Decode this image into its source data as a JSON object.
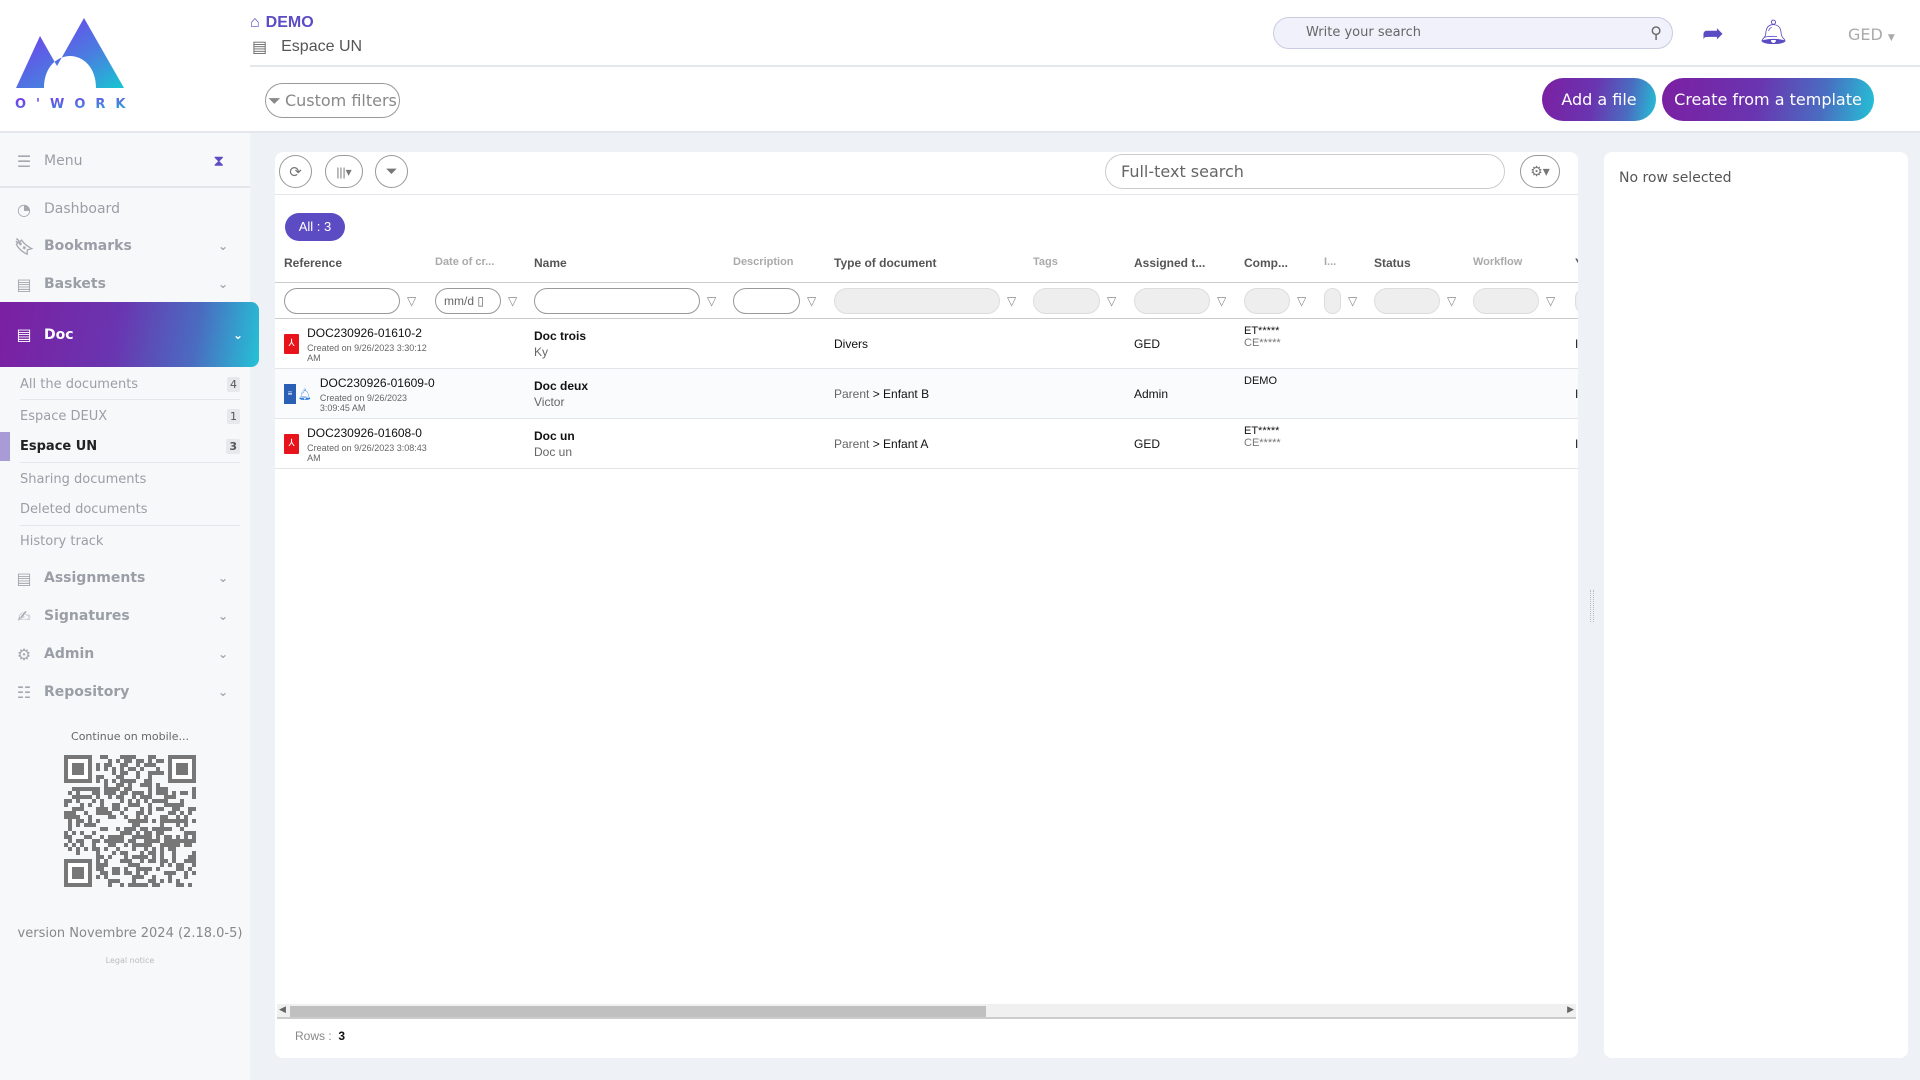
{
  "logo": {
    "text": "O'WORK"
  },
  "header": {
    "org": "DEMO",
    "space": "Espace UN",
    "search_placeholder": "Write your search",
    "user_menu": "GED",
    "custom_filters": "Custom filters",
    "add_file": "Add a file",
    "create_template": "Create from a template"
  },
  "sidebar": {
    "menu": "Menu",
    "items": [
      {
        "label": "Dashboard"
      },
      {
        "label": "Bookmarks"
      },
      {
        "label": "Baskets"
      },
      {
        "label": "Doc"
      },
      {
        "label": "Assignments"
      },
      {
        "label": "Signatures"
      },
      {
        "label": "Admin"
      },
      {
        "label": "Repository"
      }
    ],
    "doc_sub": [
      {
        "label": "All the documents",
        "count": "4"
      },
      {
        "label": "Espace DEUX",
        "count": "1"
      },
      {
        "label": "Espace UN",
        "count": "3"
      },
      {
        "label": "Sharing documents"
      },
      {
        "label": "Deleted documents"
      },
      {
        "label": "History track"
      }
    ],
    "mobile": "Continue on mobile...",
    "version": "version Novembre 2024 (2.18.0-5)",
    "legal": "Legal notice"
  },
  "table": {
    "fulltext_placeholder": "Full-text search",
    "all_badge": "All : 3",
    "columns": [
      "Reference",
      "Date of cr...",
      "Name",
      "Description",
      "Type of document",
      "Tags",
      "Assigned t...",
      "Comp...",
      "I...",
      "Status",
      "Workflow",
      "Y"
    ],
    "date_placeholder": "mm/d",
    "rows": [
      {
        "ref": "DOC230926-01610-2",
        "created": "Created on 9/26/2023 3:30:12 AM",
        "name": "Doc trois",
        "desc": "Ky",
        "type_parent": "",
        "type": "Divers",
        "assigned": "GED",
        "comp1": "ET*****",
        "comp2": "CE*****",
        "icon": "pdf-icon"
      },
      {
        "ref": "DOC230926-01609-0",
        "created": "Created on 9/26/2023 3:09:45 AM",
        "name": "Doc deux",
        "desc": "Victor",
        "type_parent": "Parent",
        "type": "> Enfant B",
        "assigned": "Admin",
        "comp1": "DEMO",
        "comp2": "",
        "icon": "word-doc-icon"
      },
      {
        "ref": "DOC230926-01608-0",
        "created": "Created on 9/26/2023 3:08:43 AM",
        "name": "Doc un",
        "desc": "Doc un",
        "type_parent": "Parent",
        "type": "> Enfant A",
        "assigned": "GED",
        "comp1": "ET*****",
        "comp2": "CE*****",
        "icon": "pdf-icon"
      }
    ],
    "rows_label": "Rows :",
    "rows_count": "3"
  },
  "detail": {
    "empty": "No row selected"
  },
  "colors": {
    "accent": "#5b4cc4",
    "gradient_start": "#7b1fa2",
    "gradient_end": "#24c2d6"
  }
}
